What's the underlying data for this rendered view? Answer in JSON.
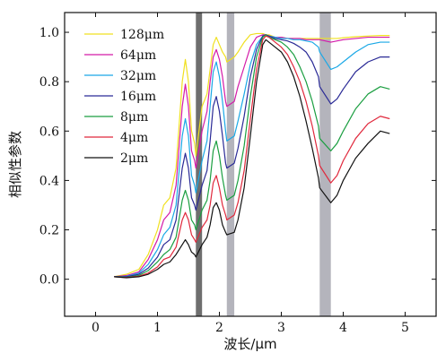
{
  "chart_data": {
    "type": "line",
    "xlabel": "波长/μm",
    "ylabel": "相似性参数",
    "xlim": [
      -0.5,
      5.5
    ],
    "ylim": [
      -0.15,
      1.08
    ],
    "xticks": [
      0,
      1,
      2,
      3,
      4,
      5
    ],
    "yticks": [
      0.0,
      0.2,
      0.4,
      0.6,
      0.8,
      1.0
    ],
    "xtick_labels": [
      "0",
      "1",
      "2",
      "3",
      "4",
      "5"
    ],
    "ytick_labels": [
      "0.0",
      "0.2",
      "0.4",
      "0.6",
      "0.8",
      "1.0"
    ],
    "legend_position": "upper-left",
    "grid": false,
    "bands": [
      {
        "x0": 1.62,
        "x1": 1.72,
        "color": "#6e6e6e"
      },
      {
        "x0": 2.12,
        "x1": 2.24,
        "color": "#b4b4bc"
      },
      {
        "x0": 3.62,
        "x1": 3.8,
        "color": "#b4b4bc"
      }
    ],
    "series": [
      {
        "name": "128μm",
        "color": "#f0e020",
        "x": [
          0.3,
          0.5,
          0.7,
          0.85,
          1.0,
          1.1,
          1.2,
          1.3,
          1.4,
          1.45,
          1.5,
          1.55,
          1.6,
          1.62,
          1.72,
          1.8,
          1.85,
          1.9,
          1.95,
          2.0,
          2.05,
          2.1,
          2.12,
          2.24,
          2.3,
          2.4,
          2.5,
          2.6,
          2.7,
          2.75,
          2.8,
          2.9,
          3.0,
          3.1,
          3.2,
          3.3,
          3.4,
          3.5,
          3.6,
          3.62,
          3.8,
          3.9,
          4.0,
          4.2,
          4.4,
          4.6,
          4.75
        ],
        "y": [
          0.01,
          0.02,
          0.04,
          0.1,
          0.2,
          0.3,
          0.33,
          0.45,
          0.8,
          0.89,
          0.8,
          0.6,
          0.55,
          0.5,
          0.7,
          0.75,
          0.85,
          0.95,
          0.98,
          0.95,
          0.92,
          0.9,
          0.88,
          0.9,
          0.92,
          0.96,
          0.99,
          0.995,
          0.995,
          0.99,
          0.99,
          0.98,
          0.98,
          0.975,
          0.975,
          0.975,
          0.975,
          0.975,
          0.975,
          0.975,
          0.975,
          0.975,
          0.978,
          0.982,
          0.985,
          0.987,
          0.987
        ]
      },
      {
        "name": "64μm",
        "color": "#d41aa8",
        "x": [
          0.3,
          0.5,
          0.7,
          0.85,
          1.0,
          1.1,
          1.2,
          1.3,
          1.4,
          1.45,
          1.5,
          1.55,
          1.6,
          1.62,
          1.72,
          1.8,
          1.85,
          1.9,
          1.95,
          2.0,
          2.05,
          2.1,
          2.12,
          2.24,
          2.3,
          2.4,
          2.5,
          2.6,
          2.7,
          2.75,
          2.8,
          2.9,
          3.0,
          3.1,
          3.2,
          3.3,
          3.4,
          3.5,
          3.6,
          3.62,
          3.8,
          3.9,
          4.0,
          4.2,
          4.4,
          4.6,
          4.75
        ],
        "y": [
          0.01,
          0.015,
          0.03,
          0.08,
          0.16,
          0.24,
          0.27,
          0.38,
          0.7,
          0.79,
          0.7,
          0.52,
          0.48,
          0.45,
          0.6,
          0.68,
          0.8,
          0.9,
          0.93,
          0.89,
          0.82,
          0.72,
          0.7,
          0.72,
          0.78,
          0.86,
          0.94,
          0.98,
          0.99,
          0.99,
          0.985,
          0.98,
          0.98,
          0.975,
          0.975,
          0.975,
          0.97,
          0.97,
          0.97,
          0.97,
          0.96,
          0.965,
          0.97,
          0.975,
          0.98,
          0.98,
          0.98
        ]
      },
      {
        "name": "32μm",
        "color": "#1aa8e6",
        "x": [
          0.3,
          0.5,
          0.7,
          0.85,
          1.0,
          1.1,
          1.2,
          1.3,
          1.4,
          1.45,
          1.5,
          1.55,
          1.6,
          1.62,
          1.72,
          1.8,
          1.85,
          1.9,
          1.95,
          2.0,
          2.05,
          2.1,
          2.12,
          2.24,
          2.3,
          2.4,
          2.5,
          2.6,
          2.7,
          2.75,
          2.8,
          2.9,
          3.0,
          3.1,
          3.2,
          3.3,
          3.4,
          3.5,
          3.6,
          3.62,
          3.8,
          3.9,
          4.0,
          4.2,
          4.4,
          4.6,
          4.75
        ],
        "y": [
          0.01,
          0.012,
          0.025,
          0.06,
          0.12,
          0.18,
          0.21,
          0.3,
          0.58,
          0.65,
          0.58,
          0.42,
          0.38,
          0.35,
          0.48,
          0.56,
          0.7,
          0.84,
          0.88,
          0.82,
          0.72,
          0.6,
          0.56,
          0.58,
          0.64,
          0.75,
          0.87,
          0.95,
          0.985,
          0.99,
          0.985,
          0.98,
          0.975,
          0.975,
          0.97,
          0.97,
          0.965,
          0.96,
          0.94,
          0.92,
          0.85,
          0.86,
          0.88,
          0.92,
          0.95,
          0.96,
          0.96
        ]
      },
      {
        "name": "16μm",
        "color": "#2a2a96",
        "x": [
          0.3,
          0.5,
          0.7,
          0.85,
          1.0,
          1.1,
          1.2,
          1.3,
          1.4,
          1.45,
          1.5,
          1.55,
          1.6,
          1.62,
          1.72,
          1.8,
          1.85,
          1.9,
          1.95,
          2.0,
          2.05,
          2.1,
          2.12,
          2.24,
          2.3,
          2.4,
          2.5,
          2.6,
          2.7,
          2.75,
          2.8,
          2.9,
          3.0,
          3.1,
          3.2,
          3.3,
          3.4,
          3.5,
          3.6,
          3.62,
          3.8,
          3.9,
          4.0,
          4.2,
          4.4,
          4.6,
          4.75
        ],
        "y": [
          0.01,
          0.01,
          0.02,
          0.045,
          0.09,
          0.14,
          0.16,
          0.24,
          0.45,
          0.51,
          0.45,
          0.33,
          0.3,
          0.28,
          0.38,
          0.44,
          0.56,
          0.7,
          0.74,
          0.68,
          0.58,
          0.47,
          0.45,
          0.47,
          0.53,
          0.66,
          0.82,
          0.93,
          0.985,
          0.99,
          0.985,
          0.975,
          0.97,
          0.965,
          0.955,
          0.94,
          0.92,
          0.88,
          0.82,
          0.78,
          0.71,
          0.73,
          0.77,
          0.84,
          0.88,
          0.9,
          0.9
        ]
      },
      {
        "name": "8μm",
        "color": "#1a9e40",
        "x": [
          0.3,
          0.5,
          0.7,
          0.85,
          1.0,
          1.1,
          1.2,
          1.3,
          1.4,
          1.45,
          1.5,
          1.55,
          1.6,
          1.62,
          1.72,
          1.8,
          1.85,
          1.9,
          1.95,
          2.0,
          2.05,
          2.1,
          2.12,
          2.24,
          2.3,
          2.4,
          2.5,
          2.6,
          2.7,
          2.75,
          2.8,
          2.9,
          3.0,
          3.1,
          3.2,
          3.3,
          3.4,
          3.5,
          3.6,
          3.62,
          3.8,
          3.9,
          4.0,
          4.2,
          4.4,
          4.6,
          4.75
        ],
        "y": [
          0.01,
          0.008,
          0.015,
          0.035,
          0.07,
          0.1,
          0.12,
          0.17,
          0.32,
          0.36,
          0.32,
          0.24,
          0.22,
          0.2,
          0.28,
          0.32,
          0.4,
          0.52,
          0.56,
          0.5,
          0.41,
          0.34,
          0.32,
          0.34,
          0.4,
          0.54,
          0.74,
          0.9,
          0.98,
          0.99,
          0.98,
          0.97,
          0.96,
          0.94,
          0.91,
          0.86,
          0.8,
          0.72,
          0.62,
          0.57,
          0.52,
          0.55,
          0.6,
          0.69,
          0.75,
          0.78,
          0.77
        ]
      },
      {
        "name": "4μm",
        "color": "#e0283c",
        "x": [
          0.3,
          0.5,
          0.7,
          0.85,
          1.0,
          1.1,
          1.2,
          1.3,
          1.4,
          1.45,
          1.5,
          1.55,
          1.6,
          1.62,
          1.72,
          1.8,
          1.85,
          1.9,
          1.95,
          2.0,
          2.05,
          2.1,
          2.12,
          2.24,
          2.3,
          2.4,
          2.5,
          2.6,
          2.7,
          2.75,
          2.8,
          2.9,
          3.0,
          3.1,
          3.2,
          3.3,
          3.4,
          3.5,
          3.6,
          3.62,
          3.8,
          3.9,
          4.0,
          4.2,
          4.4,
          4.6,
          4.75
        ],
        "y": [
          0.01,
          0.007,
          0.012,
          0.025,
          0.05,
          0.08,
          0.09,
          0.13,
          0.24,
          0.27,
          0.24,
          0.18,
          0.16,
          0.15,
          0.21,
          0.24,
          0.3,
          0.39,
          0.42,
          0.37,
          0.3,
          0.26,
          0.24,
          0.26,
          0.31,
          0.44,
          0.65,
          0.85,
          0.97,
          0.985,
          0.98,
          0.96,
          0.94,
          0.91,
          0.86,
          0.8,
          0.72,
          0.62,
          0.5,
          0.46,
          0.39,
          0.42,
          0.48,
          0.57,
          0.63,
          0.66,
          0.65
        ]
      },
      {
        "name": "2μm",
        "color": "#111111",
        "x": [
          0.3,
          0.5,
          0.7,
          0.85,
          1.0,
          1.1,
          1.2,
          1.3,
          1.4,
          1.45,
          1.5,
          1.55,
          1.6,
          1.62,
          1.72,
          1.8,
          1.85,
          1.9,
          1.95,
          2.0,
          2.05,
          2.1,
          2.12,
          2.24,
          2.3,
          2.4,
          2.5,
          2.6,
          2.7,
          2.75,
          2.8,
          2.9,
          3.0,
          3.1,
          3.2,
          3.3,
          3.4,
          3.5,
          3.6,
          3.62,
          3.8,
          3.9,
          4.0,
          4.2,
          4.4,
          4.6,
          4.75
        ],
        "y": [
          0.01,
          0.006,
          0.01,
          0.02,
          0.04,
          0.06,
          0.07,
          0.1,
          0.14,
          0.16,
          0.14,
          0.11,
          0.1,
          0.09,
          0.14,
          0.17,
          0.22,
          0.29,
          0.31,
          0.28,
          0.22,
          0.19,
          0.18,
          0.19,
          0.24,
          0.37,
          0.58,
          0.8,
          0.95,
          0.97,
          0.96,
          0.94,
          0.92,
          0.88,
          0.82,
          0.74,
          0.64,
          0.53,
          0.41,
          0.37,
          0.31,
          0.34,
          0.4,
          0.49,
          0.55,
          0.6,
          0.59
        ]
      }
    ]
  }
}
